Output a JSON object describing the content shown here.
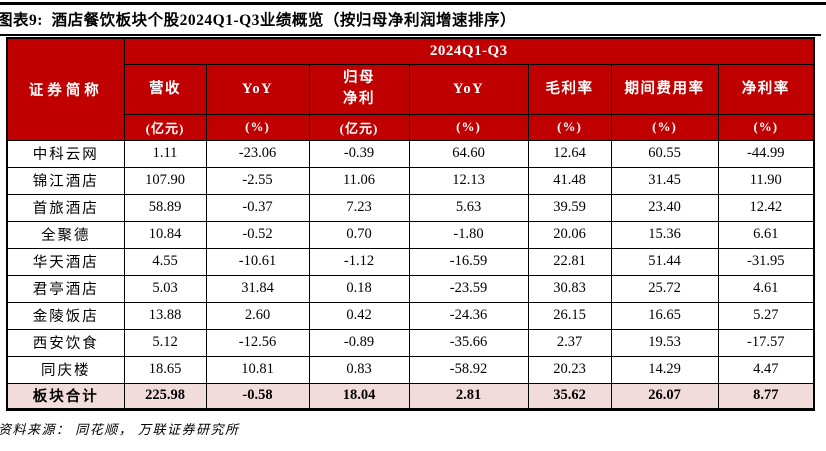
{
  "title": "图表9:  酒店餐饮板块个股2024Q1-Q3业绩概览（按归母净利润增速排序）",
  "colors": {
    "header_red": "#C00000",
    "total_row_pink": "#F2DCDB",
    "border": "#000000",
    "header_text": "#FFFFFF"
  },
  "table": {
    "period_header": "2024Q1-Q3",
    "stub_header": "证券简称",
    "columns": [
      {
        "label": "营收",
        "unit": "(亿元)"
      },
      {
        "label": "YoY",
        "unit": "(%)"
      },
      {
        "label": "归母\n净利",
        "unit": "(亿元)"
      },
      {
        "label": "YoY",
        "unit": "(%)"
      },
      {
        "label": "毛利率",
        "unit": "(%)"
      },
      {
        "label": "期间费用率",
        "unit": "(%)"
      },
      {
        "label": "净利率",
        "unit": "(%)"
      }
    ],
    "rows": [
      {
        "name": "中科云网",
        "values": [
          "1.11",
          "-23.06",
          "-0.39",
          "64.60",
          "12.64",
          "60.55",
          "-44.99"
        ]
      },
      {
        "name": "锦江酒店",
        "values": [
          "107.90",
          "-2.55",
          "11.06",
          "12.13",
          "41.48",
          "31.45",
          "11.90"
        ]
      },
      {
        "name": "首旅酒店",
        "values": [
          "58.89",
          "-0.37",
          "7.23",
          "5.63",
          "39.59",
          "23.40",
          "12.42"
        ]
      },
      {
        "name": "全聚德",
        "values": [
          "10.84",
          "-0.52",
          "0.70",
          "-1.80",
          "20.06",
          "15.36",
          "6.61"
        ]
      },
      {
        "name": "华天酒店",
        "values": [
          "4.55",
          "-10.61",
          "-1.12",
          "-16.59",
          "22.81",
          "51.44",
          "-31.95"
        ]
      },
      {
        "name": "君亭酒店",
        "values": [
          "5.03",
          "31.84",
          "0.18",
          "-23.59",
          "30.83",
          "25.72",
          "4.61"
        ]
      },
      {
        "name": "金陵饭店",
        "values": [
          "13.88",
          "2.60",
          "0.42",
          "-24.36",
          "26.15",
          "16.65",
          "5.27"
        ]
      },
      {
        "name": "西安饮食",
        "values": [
          "5.12",
          "-12.56",
          "-0.89",
          "-35.66",
          "2.37",
          "19.53",
          "-17.57"
        ]
      },
      {
        "name": "同庆楼",
        "values": [
          "18.65",
          "10.81",
          "0.83",
          "-58.92",
          "20.23",
          "14.29",
          "4.47"
        ]
      }
    ],
    "total_row": {
      "name": "板块合计",
      "values": [
        "225.98",
        "-0.58",
        "18.04",
        "2.81",
        "35.62",
        "26.07",
        "8.77"
      ]
    }
  },
  "footer": {
    "source_text": "资料来源： 同花顺， 万联证券研究所"
  }
}
